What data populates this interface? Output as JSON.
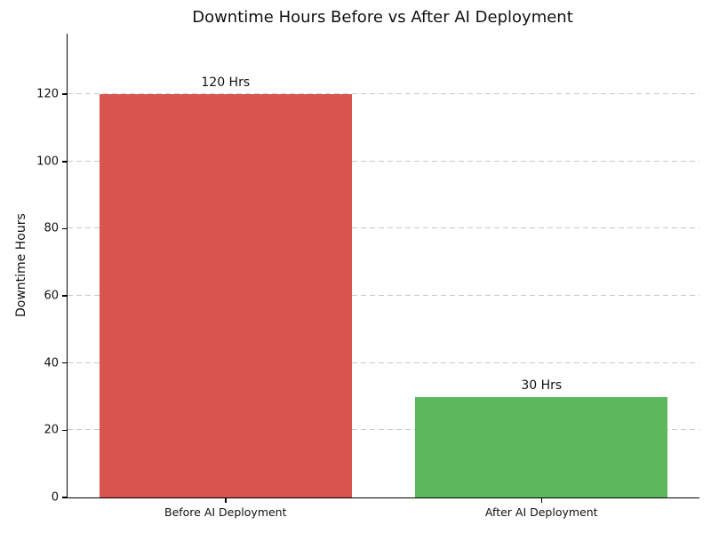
{
  "chart_data": {
    "type": "bar",
    "title": "Downtime Hours Before vs After AI Deployment",
    "xlabel": "",
    "ylabel": "Downtime Hours",
    "categories": [
      "Before AI Deployment",
      "After AI Deployment"
    ],
    "values": [
      120,
      30
    ],
    "bar_labels": [
      "120 Hrs",
      "30 Hrs"
    ],
    "bar_colors": [
      "#d9534f",
      "#5cb85c"
    ],
    "ylim": [
      0,
      138
    ],
    "yticks": [
      0,
      20,
      40,
      60,
      80,
      100,
      120
    ],
    "grid": "horizontal-dashed",
    "grid_color": "#c8c8c8",
    "axis_color": "#000000",
    "text_color": "#111111",
    "background_color": "#ffffff",
    "legend": "none",
    "bar_width_fraction": 0.8
  }
}
